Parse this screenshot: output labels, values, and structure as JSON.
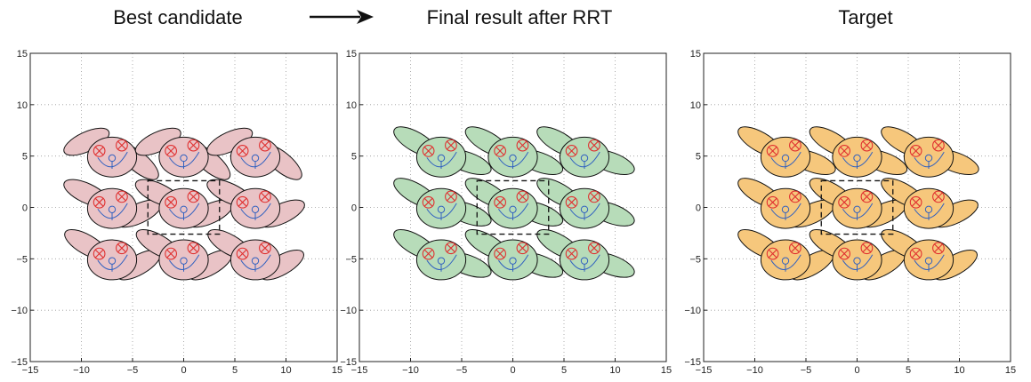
{
  "header": {
    "titles": [
      "Best candidate",
      "Final result after RRT",
      "Target"
    ]
  },
  "axes": {
    "xlim": [
      -15,
      15
    ],
    "ylim": [
      -15,
      15
    ],
    "xticks": [
      -15,
      -10,
      -5,
      0,
      5,
      10,
      15
    ],
    "yticks": [
      -15,
      -10,
      -5,
      0,
      5,
      10,
      15
    ],
    "xtick_labels": [
      "−15",
      "−10",
      "−5",
      "0",
      "5",
      "10",
      "15"
    ],
    "ytick_labels": [
      "−15",
      "−10",
      "−5",
      "0",
      "5",
      "10",
      "15"
    ],
    "grid": true
  },
  "panels": [
    {
      "title": "Best candidate",
      "fill": "#e9c3c6",
      "variant": "candidate"
    },
    {
      "title": "Final result after RRT",
      "fill": "#b7dcb9",
      "variant": "rrt"
    },
    {
      "title": "Target",
      "fill": "#f6c77c",
      "variant": "target"
    }
  ],
  "arrow": "right-arrow",
  "colors": {
    "eye": "#e03030",
    "mouth": "#3060c0",
    "outline": "#111111"
  },
  "lattice": {
    "x_centers": [
      -7,
      0,
      7
    ],
    "y_centers": [
      5,
      0,
      -5
    ],
    "unit_cell": {
      "x_range": [
        -3.5,
        3.5
      ],
      "y_range": [
        -2.6,
        2.6
      ]
    }
  }
}
